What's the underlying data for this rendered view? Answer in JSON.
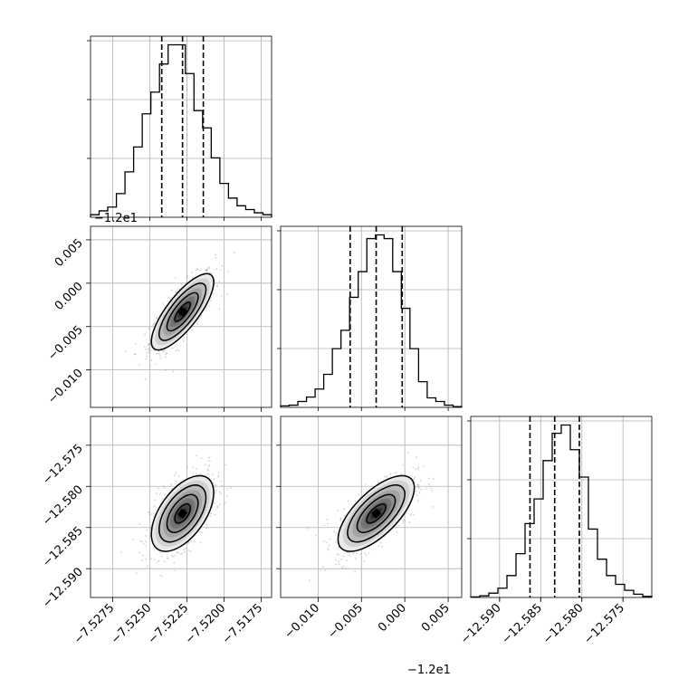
{
  "chart_data": {
    "type": "corner",
    "parameters": 3,
    "offset_labels": {
      "panel_1_0_y": "−1.2e1",
      "panel_1_1_x": "−1.2e1"
    },
    "ranges": {
      "p0": [
        -7.529,
        -7.5168
      ],
      "p1": [
        -12.01432,
        -11.99344
      ],
      "p2": [
        -12.5935,
        -12.5715
      ]
    },
    "ticks": {
      "p0": [
        -7.5275,
        -7.525,
        -7.5225,
        -7.52,
        -7.5175
      ],
      "p1": [
        -12.01,
        -12.005,
        -12.0,
        -11.995
      ],
      "p2": [
        -12.59,
        -12.585,
        -12.58,
        -12.575
      ]
    },
    "tick_labels": {
      "p0": [
        "−7.5275",
        "−7.5250",
        "−7.5225",
        "−7.5200",
        "−7.5175"
      ],
      "p1_x": [
        "−0.010",
        "−0.005",
        "0.000",
        "0.005"
      ],
      "p1_y": [
        "−0.010",
        "−0.005",
        "0.000",
        "0.005"
      ],
      "p2": [
        "−12.590",
        "−12.585",
        "−12.580",
        "−12.575"
      ]
    },
    "quantiles": {
      "p0": [
        -7.5242,
        -7.5228,
        -7.5214
      ],
      "p1": [
        -12.0063,
        -12.0033,
        -12.0003
      ],
      "p2": [
        -12.5863,
        -12.5833,
        -12.5803
      ]
    },
    "histograms": {
      "p0": {
        "range": [
          -7.529,
          -7.5168
        ],
        "counts": [
          4,
          10,
          16,
          37,
          71,
          110,
          162,
          196,
          240,
          270,
          270,
          225,
          167,
          140,
          93,
          53,
          30,
          18,
          12,
          7,
          4
        ]
      },
      "p1": {
        "range": [
          -12.01432,
          -11.99344
        ],
        "counts": [
          2,
          3,
          8,
          14,
          25,
          45,
          80,
          105,
          150,
          185,
          230,
          235,
          230,
          185,
          135,
          80,
          35,
          13,
          8,
          3,
          1
        ]
      },
      "p2": {
        "range": [
          -12.5935,
          -12.5715
        ],
        "counts": [
          1,
          3,
          8,
          17,
          40,
          80,
          135,
          180,
          250,
          300,
          315,
          270,
          220,
          125,
          70,
          40,
          24,
          13,
          6,
          2
        ]
      }
    },
    "joint": {
      "p0_p1": {
        "mean": [
          -7.5228,
          -12.0033
        ],
        "sd": [
          0.00105,
          0.0022
        ],
        "rho": 0.78
      },
      "p0_p2": {
        "mean": [
          -7.5228,
          -12.5833
        ],
        "sd": [
          0.00105,
          0.0023
        ],
        "rho": 0.55
      },
      "p1_p2": {
        "mean": [
          -12.0033,
          -12.5833
        ],
        "sd": [
          0.0022,
          0.0023
        ],
        "rho": 0.68
      }
    },
    "contour_levels_sigma": [
      0.5,
      1.0,
      1.5,
      2.0
    ],
    "grid": true,
    "colors": {
      "scatter": "#9a9a9a",
      "contour": "#000000",
      "density_dark": "#000000",
      "grid": "#b0b0b0"
    }
  }
}
